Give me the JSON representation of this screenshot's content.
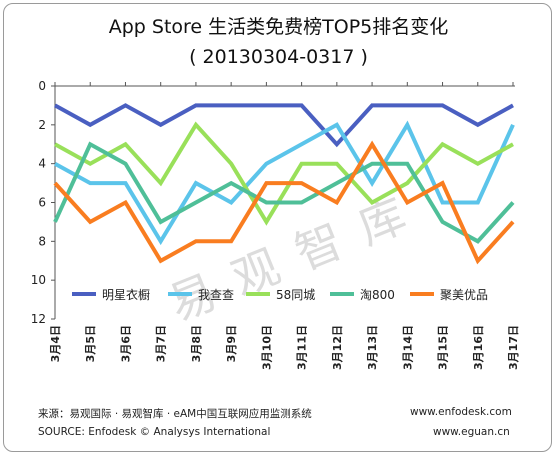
{
  "title_line1": "App Store 生活类免费榜TOP5排名变化",
  "title_line2": "( 20130304-0317 )",
  "footer": {
    "source_cn": "来源：易观国际 · 易观智库 · eAM中国互联网应用监测系统",
    "source_en": "SOURCE: Enfodesk © Analysys International",
    "url1": "www.enfodesk.com",
    "url2": "www.eguan.cn"
  },
  "watermark": "易观智库",
  "chart_data": {
    "type": "line",
    "title": "App Store 生活类免费榜TOP5排名变化",
    "subtitle": "( 20130304-0317 )",
    "xlabel": "",
    "ylabel": "",
    "y_reversed": true,
    "ylim": [
      0,
      12
    ],
    "yticks": [
      0,
      2,
      4,
      6,
      8,
      10,
      12
    ],
    "grid": false,
    "legend": "inside-bottom",
    "categories": [
      "3月4日",
      "3月5日",
      "3月6日",
      "3月7日",
      "3月8日",
      "3月9日",
      "3月10日",
      "3月11日",
      "3月12日",
      "3月13日",
      "3月14日",
      "3月15日",
      "3月16日",
      "3月17日"
    ],
    "series": [
      {
        "name": "明星衣橱",
        "color": "#4a5fc1",
        "values": [
          1,
          2,
          1,
          2,
          1,
          1,
          1,
          1,
          3,
          1,
          1,
          1,
          2,
          1
        ]
      },
      {
        "name": "我查查",
        "color": "#5bc4ea",
        "values": [
          4,
          5,
          5,
          8,
          5,
          6,
          4,
          3,
          2,
          5,
          2,
          6,
          6,
          2
        ]
      },
      {
        "name": "58同城",
        "color": "#99e05a",
        "values": [
          3,
          4,
          3,
          5,
          2,
          4,
          7,
          4,
          4,
          6,
          5,
          3,
          4,
          3
        ]
      },
      {
        "name": "淘800",
        "color": "#4fbf98",
        "values": [
          7,
          3,
          4,
          7,
          6,
          5,
          6,
          6,
          5,
          4,
          4,
          7,
          8,
          6
        ]
      },
      {
        "name": "聚美优品",
        "color": "#f97d20",
        "values": [
          5,
          7,
          6,
          9,
          8,
          8,
          5,
          5,
          6,
          3,
          6,
          5,
          9,
          7
        ]
      }
    ]
  }
}
